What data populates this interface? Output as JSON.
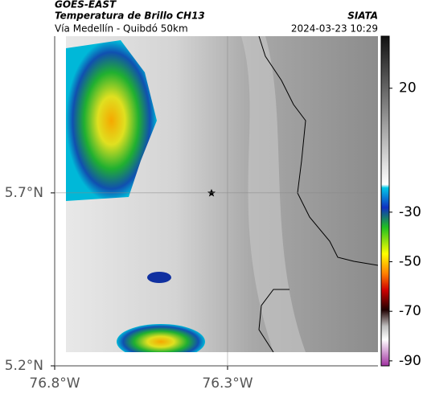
{
  "header": {
    "source": "GOES-EAST",
    "title": "Temperatura de Brillo CH13",
    "brand": "SIATA",
    "subtitle": "Vía Medellín - Quibdó 50km",
    "datetime": "2024-03-23 10:29"
  },
  "map": {
    "xlim": [
      -76.8,
      -75.865
    ],
    "ylim": [
      5.2,
      6.153
    ],
    "xticks": [
      {
        "value": -76.8,
        "label": "76.8°W"
      },
      {
        "value": -76.3,
        "label": "76.3°W"
      }
    ],
    "yticks": [
      {
        "value": 5.2,
        "label": "5.2°N"
      },
      {
        "value": 5.7,
        "label": "5.7°N"
      }
    ]
  },
  "colorbar": {
    "lim": [
      -92,
      41
    ],
    "ticks": [
      20,
      -30,
      -50,
      -70,
      -90
    ]
  }
}
